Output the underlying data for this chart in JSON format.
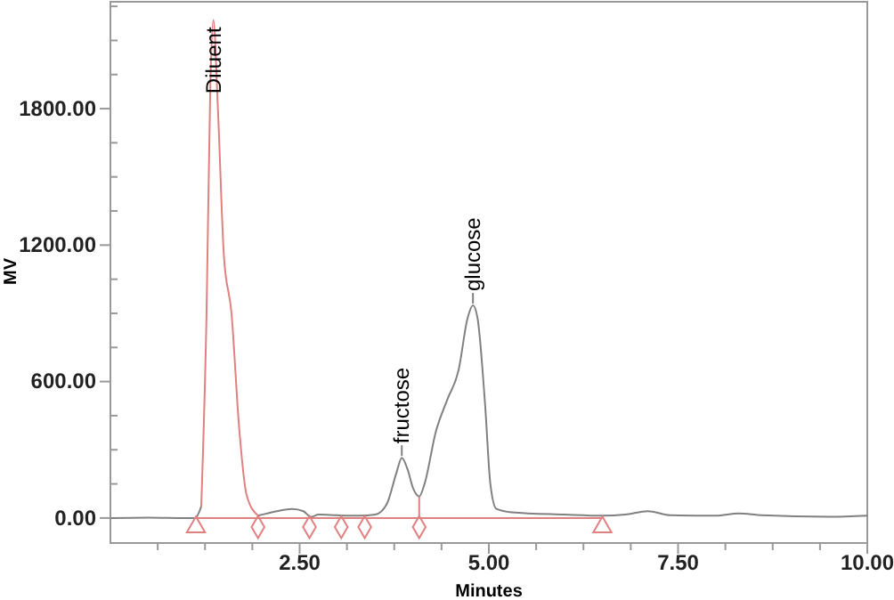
{
  "chart_data": {
    "type": "line",
    "xlabel": "Minutes",
    "ylabel": "MV",
    "xlim": [
      0,
      10
    ],
    "ylim": [
      -110,
      2270
    ],
    "xticks": [
      {
        "value": 0.625,
        "label": null
      },
      {
        "value": 1.25,
        "label": null
      },
      {
        "value": 1.875,
        "label": null
      },
      {
        "value": 2.5,
        "label": "2.50"
      },
      {
        "value": 3.125,
        "label": null
      },
      {
        "value": 3.75,
        "label": null
      },
      {
        "value": 4.375,
        "label": null
      },
      {
        "value": 5,
        "label": "5.00"
      },
      {
        "value": 5.625,
        "label": null
      },
      {
        "value": 6.25,
        "label": null
      },
      {
        "value": 6.875,
        "label": null
      },
      {
        "value": 7.5,
        "label": "7.50"
      },
      {
        "value": 8.125,
        "label": null
      },
      {
        "value": 8.75,
        "label": null
      },
      {
        "value": 9.375,
        "label": null
      },
      {
        "value": 10,
        "label": "10.00"
      }
    ],
    "yticks": [
      {
        "value": 0,
        "label": "0.00"
      },
      {
        "value": 150,
        "label": null
      },
      {
        "value": 300,
        "label": null
      },
      {
        "value": 450,
        "label": null
      },
      {
        "value": 600,
        "label": "600.00"
      },
      {
        "value": 750,
        "label": null
      },
      {
        "value": 900,
        "label": null
      },
      {
        "value": 1050,
        "label": null
      },
      {
        "value": 1200,
        "label": "1200.00"
      },
      {
        "value": 1350,
        "label": null
      },
      {
        "value": 1500,
        "label": null
      },
      {
        "value": 1650,
        "label": null
      },
      {
        "value": 1800,
        "label": "1800.00"
      },
      {
        "value": 1950,
        "label": null
      },
      {
        "value": 2100,
        "label": null
      },
      {
        "value": 2250,
        "label": null
      }
    ],
    "grid": false,
    "series": [
      {
        "color": "#808080",
        "x": [
          0,
          0.5,
          1.0,
          1.12,
          1.2
        ],
        "values": [
          0,
          2,
          0,
          0,
          50
        ]
      },
      {
        "color": "#e08080",
        "x": [
          1.2,
          1.27,
          1.32,
          1.36,
          1.42,
          1.5,
          1.6,
          1.7,
          1.8,
          1.95
        ],
        "values": [
          50,
          900,
          1900,
          2190,
          1800,
          1150,
          900,
          400,
          100,
          10
        ]
      },
      {
        "color": "#808080",
        "x": [
          1.95,
          2.2,
          2.4,
          2.55,
          2.65,
          2.75,
          3.0,
          3.3,
          3.5,
          3.65,
          3.78,
          3.85,
          3.93,
          4.0,
          4.08,
          4.15,
          4.3,
          4.45,
          4.6,
          4.72,
          4.79,
          4.85,
          4.95,
          5.02,
          5.1,
          5.3,
          6.0,
          6.5,
          6.8,
          7.1,
          7.4,
          8.0,
          8.3,
          8.6,
          9.5,
          10
        ],
        "values": [
          10,
          30,
          40,
          30,
          5,
          15,
          12,
          10,
          15,
          60,
          200,
          265,
          210,
          130,
          95,
          150,
          380,
          520,
          650,
          880,
          935,
          880,
          500,
          150,
          40,
          25,
          15,
          10,
          15,
          30,
          12,
          10,
          20,
          12,
          5,
          10
        ]
      },
      {
        "color": "#e08080",
        "x": [
          1.13,
          6.5
        ],
        "values": [
          0,
          0
        ]
      },
      {
        "color": "#e08080",
        "x": [
          4.08,
          4.08
        ],
        "values": [
          0,
          95
        ]
      },
      {
        "type": "scatter",
        "marker": "triangle",
        "color": "#e08080",
        "x": [
          1.13,
          6.5
        ],
        "values": [
          -40,
          -40
        ]
      },
      {
        "type": "scatter",
        "marker": "diamond",
        "color": "#e08080",
        "x": [
          1.95,
          2.63,
          3.05,
          3.36,
          4.08
        ],
        "values": [
          -40,
          -40,
          -40,
          -40,
          -40
        ]
      }
    ],
    "annotations": [
      {
        "text": "Diluent",
        "x": 1.36,
        "y": 2190
      },
      {
        "text": "fructose",
        "x": 3.85,
        "y": 265
      },
      {
        "text": "glucose",
        "x": 4.79,
        "y": 935
      }
    ]
  }
}
